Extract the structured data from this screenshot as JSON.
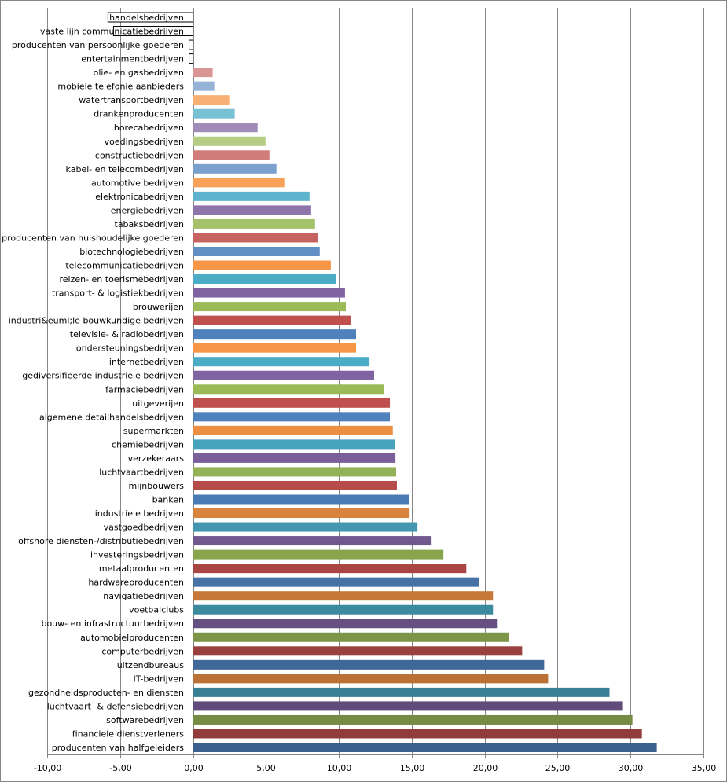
{
  "chart_data": {
    "type": "bar",
    "orientation": "horizontal",
    "title": "",
    "xlabel": "",
    "ylabel": "",
    "xlim": [
      -10,
      35
    ],
    "xticks": [
      "-10,00",
      "-5,00",
      "0,00",
      "5,00",
      "10,00",
      "15,00",
      "20,00",
      "25,00",
      "30,00",
      "35,00"
    ],
    "grid": "vertical",
    "legend": "none",
    "categories": [
      "handelsbedrijven",
      "vaste lijn communicatiebedrijven",
      "producenten van persoonlijke goederen",
      "entertainmentbedrijven",
      "olie- en gasbedrijven",
      "mobiele telefonie aanbieders",
      "watertransportbedrijven",
      "drankenproducenten",
      "horecabedrijven",
      "voedingsbedrijven",
      "constructiebedrijven",
      "kabel- en telecombedrijven",
      "automotive bedrijven",
      "elektronicabedrijven",
      "energiebedrijven",
      "tabaksbedrijven",
      "producenten van huishoudelijke goederen",
      "biotechnologiebedrijven",
      "telecommunicatiebedrijven",
      "reizen- en toerismebedrijven",
      "transport- & logistiekbedrijven",
      "brouwerijen",
      "industri&euml;le bouwkundige bedrijven",
      "televisie- & radiobedrijven",
      "ondersteuningsbedrijven",
      "internetbedrijven",
      "gediversifieerde industriele bedrijven",
      "farmaciebedrijven",
      "uitgeverijen",
      "algemene detailhandelsbedrijven",
      "supermarkten",
      "chemiebedrijven",
      "verzekeraars",
      "luchtvaartbedrijven",
      "mijnbouwers",
      "banken",
      "industriele bedrijven",
      "vastgoedbedrijven",
      "offshore diensten-/distributiebedrijven",
      "investeringsbedrijven",
      "metaalproducenten",
      "hardwareproducenten",
      "navigatiebedrijven",
      "voetbalclubs",
      "bouw- en infrastructuurbedrijven",
      "automobielproducenten",
      "computerbedrijven",
      "uitzendbureaus",
      "IT-bedrijven",
      "gezondheidsproducten- en diensten",
      "luchtvaart- & defensiebedrijven",
      "softwarebedrijven",
      "financiele dienstverleners",
      "producenten van halfgeleiders"
    ],
    "values": [
      -5.83,
      -5.45,
      -0.27,
      -0.27,
      1.35,
      1.46,
      2.54,
      2.86,
      4.43,
      4.97,
      5.24,
      5.72,
      6.26,
      7.99,
      8.1,
      8.37,
      8.59,
      8.69,
      9.45,
      9.83,
      10.42,
      10.48,
      10.8,
      11.18,
      11.18,
      12.1,
      12.42,
      13.12,
      13.5,
      13.5,
      13.7,
      13.82,
      13.88,
      13.93,
      13.98,
      14.8,
      14.85,
      15.39,
      16.36,
      17.17,
      18.74,
      19.6,
      20.57,
      20.57,
      20.84,
      21.65,
      22.57,
      24.08,
      24.35,
      28.56,
      29.48,
      30.13,
      30.78,
      31.8
    ],
    "palette": [
      "#4f81bd",
      "#c0504d",
      "#9bbb59",
      "#8064a2",
      "#4bacc6",
      "#f79646"
    ]
  }
}
